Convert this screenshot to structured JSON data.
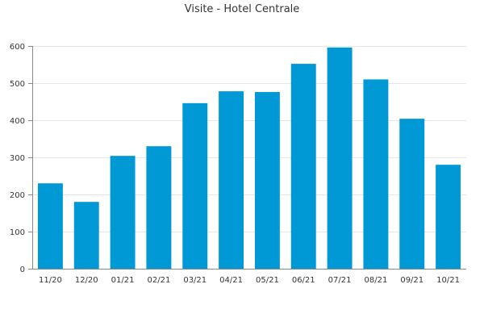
{
  "chart_data": {
    "type": "bar",
    "title": "Visite - Hotel Centrale",
    "xlabel": "",
    "ylabel": "",
    "categories": [
      "11/20",
      "12/20",
      "01/21",
      "02/21",
      "03/21",
      "04/21",
      "05/21",
      "06/21",
      "07/21",
      "08/21",
      "09/21",
      "10/21"
    ],
    "values": [
      230,
      180,
      304,
      330,
      446,
      478,
      476,
      552,
      596,
      510,
      404,
      280
    ],
    "ylim": [
      0,
      600
    ],
    "yticks": [
      0,
      100,
      200,
      300,
      400,
      500,
      600
    ],
    "grid": true,
    "legend": "none",
    "bar_color": "#0099d6"
  }
}
